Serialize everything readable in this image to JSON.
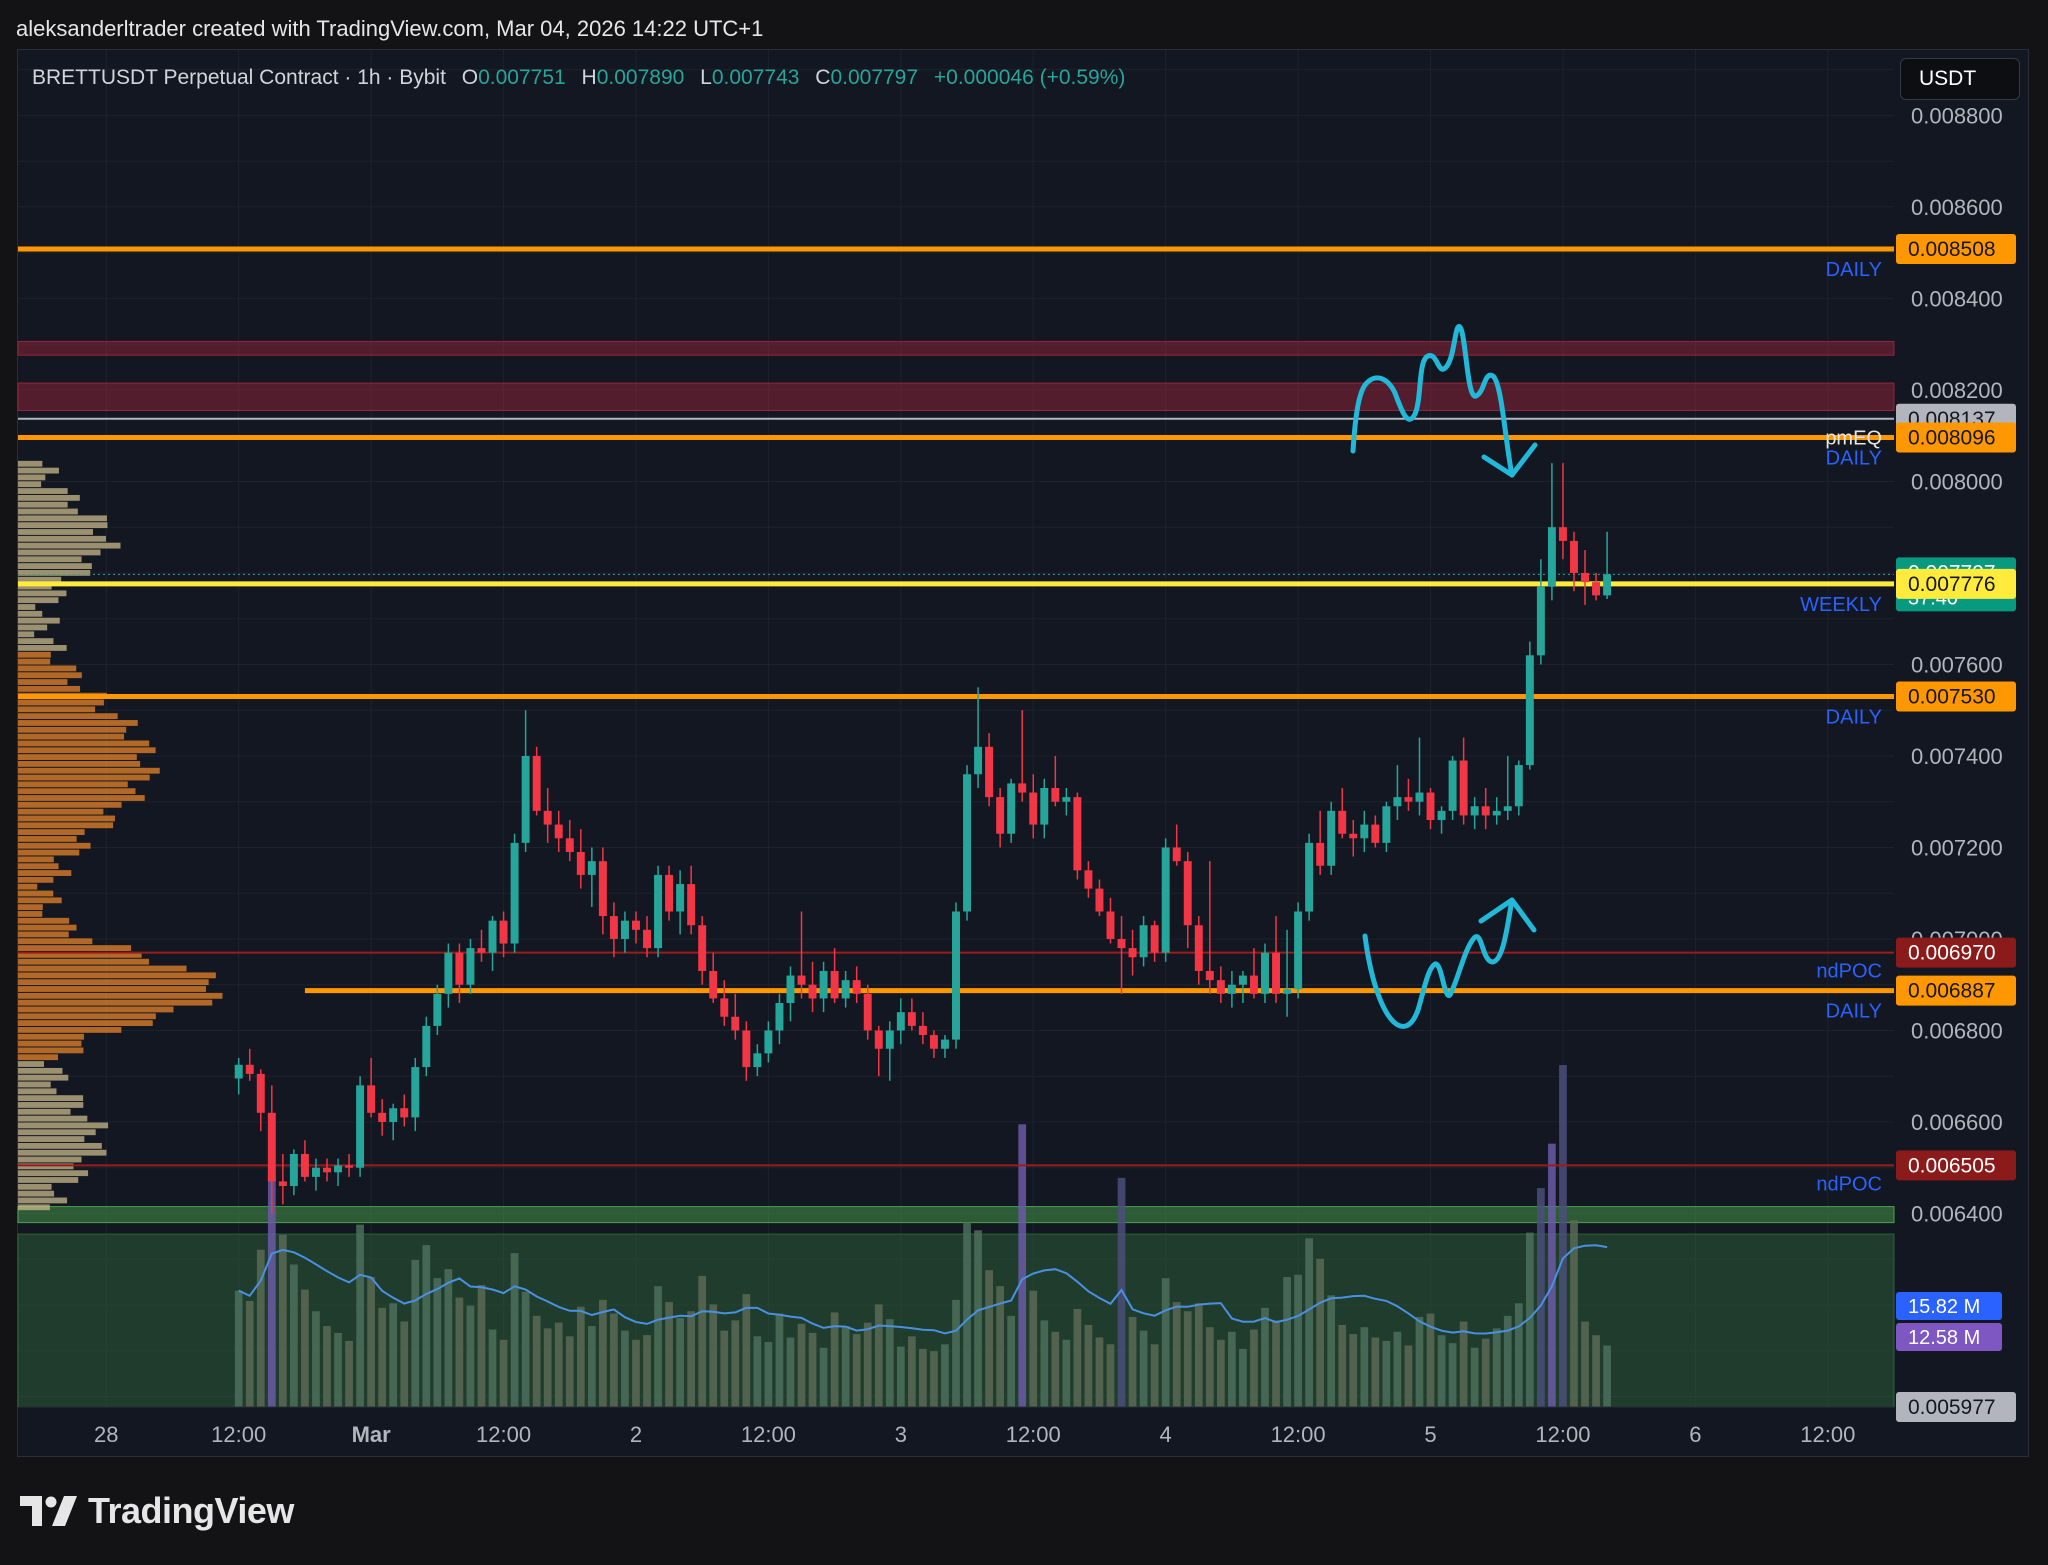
{
  "header": {
    "credit": "aleksanderltrader created with TradingView.com, Mar 04, 2026 14:22 UTC+1"
  },
  "legend": {
    "symbol": "BRETTUSDT Perpetual Contract · 1h · Bybit",
    "open_label": "O",
    "open": "0.007751",
    "high_label": "H",
    "high": "0.007890",
    "low_label": "L",
    "low": "0.007743",
    "close_label": "C",
    "close": "0.007797",
    "change": "+0.000046 (+0.59%)"
  },
  "currency_button": "USDT",
  "brand": {
    "name": "TradingView"
  },
  "colors": {
    "up": "#26a69a",
    "down": "#f23645",
    "orange": "#ff9800",
    "yellow": "#ffeb3b",
    "annotation": "#22b8d8"
  },
  "chart_data": {
    "type": "candlestick",
    "symbol": "BRETTUSDT",
    "interval": "1h",
    "exchange": "Bybit",
    "y_axis": {
      "range": [
        0.005977,
        0.008943
      ],
      "tick_labels": [
        "0.008800",
        "0.008600",
        "0.008400",
        "0.008200",
        "0.008000",
        "0.007600",
        "0.007400",
        "0.007200",
        "0.007000",
        "0.006800",
        "0.006600",
        "0.006400"
      ]
    },
    "x_axis": {
      "tick_labels": [
        "28",
        "12:00",
        "Mar",
        "12:00",
        "2",
        "12:00",
        "3",
        "12:00",
        "4",
        "12:00",
        "5",
        "12:00",
        "6",
        "12:00"
      ],
      "first_tick_hour": -12,
      "tick_step_hours": 12,
      "range_hours": [
        -20,
        150
      ]
    },
    "price_labels": [
      {
        "value": 0.008508,
        "text": "0.008508",
        "tag": "DAILY",
        "color": "#ff9800"
      },
      {
        "value": 0.008137,
        "text": "0.008137",
        "tag": "",
        "color": "#b2b5be"
      },
      {
        "value": 0.008096,
        "text": "0.008096",
        "tag": "pmEQ",
        "color": "#ff9800"
      },
      {
        "value": 0.007797,
        "text": "0.007797",
        "countdown": "37:40",
        "tag": "",
        "color": "#089981"
      },
      {
        "value": 0.007776,
        "text": "0.007776",
        "tag": "WEEKLY",
        "color": "#ffeb3b"
      },
      {
        "value": 0.00753,
        "text": "0.007530",
        "tag": "DAILY",
        "color": "#ff9800"
      },
      {
        "value": 0.00697,
        "text": "0.006970",
        "tag": "ndPOC",
        "color": "#9b1c1c"
      },
      {
        "value": 0.006887,
        "text": "0.006887",
        "tag": "DAILY",
        "color": "#ff9800"
      },
      {
        "value": 0.006505,
        "text": "0.006505",
        "tag": "ndPOC",
        "color": "#9b1c1c"
      },
      {
        "value": 0.005977,
        "text": "0.005977",
        "tag": "",
        "color": "#b2b5be"
      }
    ],
    "horizontal_levels": [
      {
        "value": 0.008508,
        "label": "DAILY",
        "color": "#ff9800"
      },
      {
        "value": 0.008096,
        "label": "DAILY",
        "color": "#ff9800"
      },
      {
        "value": 0.007776,
        "label": "WEEKLY",
        "color": "#ffeb3b"
      },
      {
        "value": 0.00753,
        "label": "DAILY",
        "color": "#ff9800"
      },
      {
        "value": 0.006887,
        "label": "DAILY",
        "color": "#ff9800"
      },
      {
        "value": 0.00697,
        "label": "ndPOC",
        "color": "#9b1c1c"
      },
      {
        "value": 0.006505,
        "label": "ndPOC",
        "color": "#9b1c1c"
      }
    ],
    "zones": [
      {
        "from": 0.008276,
        "to": 0.008306,
        "color": "#a1263c"
      },
      {
        "from": 0.008155,
        "to": 0.008215,
        "color": "#a1263c"
      },
      {
        "from": 0.00638,
        "to": 0.006415,
        "color": "#4caf50"
      },
      {
        "from": 0.005977,
        "to": 0.006355,
        "color": "#2e6b3a"
      }
    ],
    "volume_labels": [
      {
        "text": "15.82 M",
        "color": "#2962ff"
      },
      {
        "text": "12.58 M",
        "color": "#7e57c2"
      }
    ],
    "volume_y_max": 30,
    "series": [
      {
        "name": "BRETTUSDT",
        "ohlcv": [
          [
            0.006695,
            0.00674,
            0.00666,
            0.006725,
            10.2
          ],
          [
            0.006725,
            0.00676,
            0.00669,
            0.006705,
            9.3
          ],
          [
            0.006705,
            0.006715,
            0.00658,
            0.00662,
            13.8
          ],
          [
            0.00662,
            0.00668,
            0.0064,
            0.00647,
            20.5
          ],
          [
            0.00647,
            0.00653,
            0.00642,
            0.00646,
            15.1
          ],
          [
            0.00646,
            0.00654,
            0.00644,
            0.00653,
            12.5
          ],
          [
            0.00653,
            0.00656,
            0.00647,
            0.00648,
            10.3
          ],
          [
            0.00648,
            0.00652,
            0.00645,
            0.0065,
            8.4
          ],
          [
            0.0065,
            0.00652,
            0.00647,
            0.00649,
            7.1
          ],
          [
            0.00649,
            0.00652,
            0.00646,
            0.006505,
            6.5
          ],
          [
            0.006505,
            0.00653,
            0.00648,
            0.0065,
            5.8
          ],
          [
            0.0065,
            0.0067,
            0.00648,
            0.00668,
            16.0
          ],
          [
            0.00668,
            0.00674,
            0.00661,
            0.00662,
            11.4
          ],
          [
            0.00662,
            0.00665,
            0.00657,
            0.0066,
            8.7
          ],
          [
            0.0066,
            0.00664,
            0.00656,
            0.00663,
            9.1
          ],
          [
            0.00663,
            0.00666,
            0.00659,
            0.00661,
            7.5
          ],
          [
            0.00661,
            0.00674,
            0.00658,
            0.00672,
            12.9
          ],
          [
            0.00672,
            0.00683,
            0.0067,
            0.00681,
            14.2
          ],
          [
            0.00681,
            0.0069,
            0.00679,
            0.00688,
            11.3
          ],
          [
            0.00688,
            0.00699,
            0.00685,
            0.00697,
            12.1
          ],
          [
            0.00697,
            0.00699,
            0.00686,
            0.0069,
            9.6
          ],
          [
            0.0069,
            0.007,
            0.00688,
            0.00698,
            8.9
          ],
          [
            0.00698,
            0.00702,
            0.00695,
            0.00697,
            10.7
          ],
          [
            0.00697,
            0.00705,
            0.00693,
            0.00704,
            6.8
          ],
          [
            0.00704,
            0.00706,
            0.00696,
            0.00699,
            5.9
          ],
          [
            0.00699,
            0.00723,
            0.00697,
            0.00721,
            13.5
          ],
          [
            0.00721,
            0.0075,
            0.00719,
            0.0074,
            10.1
          ],
          [
            0.0074,
            0.00742,
            0.00727,
            0.00728,
            8.0
          ],
          [
            0.00728,
            0.00733,
            0.00721,
            0.00725,
            6.9
          ],
          [
            0.00725,
            0.00728,
            0.00719,
            0.00722,
            7.4
          ],
          [
            0.00722,
            0.00726,
            0.00717,
            0.00719,
            6.2
          ],
          [
            0.00719,
            0.00724,
            0.00711,
            0.00714,
            8.8
          ],
          [
            0.00714,
            0.0072,
            0.00707,
            0.00717,
            7.1
          ],
          [
            0.00717,
            0.0072,
            0.00701,
            0.00705,
            9.4
          ],
          [
            0.00705,
            0.00708,
            0.00696,
            0.007,
            8.2
          ],
          [
            0.007,
            0.00706,
            0.00697,
            0.00704,
            6.7
          ],
          [
            0.00704,
            0.00706,
            0.00699,
            0.00702,
            5.9
          ],
          [
            0.00702,
            0.00705,
            0.00696,
            0.00698,
            6.3
          ],
          [
            0.00698,
            0.00716,
            0.00696,
            0.00714,
            10.6
          ],
          [
            0.00714,
            0.00716,
            0.00704,
            0.00706,
            9.2
          ],
          [
            0.00706,
            0.00715,
            0.00701,
            0.00712,
            7.8
          ],
          [
            0.00712,
            0.00716,
            0.00701,
            0.00703,
            8.4
          ],
          [
            0.00703,
            0.00705,
            0.0069,
            0.00693,
            11.5
          ],
          [
            0.00693,
            0.00697,
            0.00686,
            0.00687,
            9.0
          ],
          [
            0.00687,
            0.00691,
            0.00681,
            0.00683,
            6.7
          ],
          [
            0.00683,
            0.00688,
            0.00678,
            0.0068,
            7.6
          ],
          [
            0.0068,
            0.00682,
            0.00669,
            0.00672,
            9.9
          ],
          [
            0.00672,
            0.00677,
            0.0067,
            0.00675,
            6.2
          ],
          [
            0.00675,
            0.00682,
            0.00673,
            0.0068,
            5.7
          ],
          [
            0.0068,
            0.00688,
            0.00677,
            0.00686,
            8.2
          ],
          [
            0.00686,
            0.00694,
            0.00682,
            0.00692,
            6.1
          ],
          [
            0.00692,
            0.00706,
            0.00687,
            0.0069,
            7.3
          ],
          [
            0.0069,
            0.00695,
            0.00684,
            0.00687,
            6.5
          ],
          [
            0.00687,
            0.00695,
            0.00684,
            0.00693,
            5.2
          ],
          [
            0.00693,
            0.00698,
            0.00686,
            0.00687,
            8.3
          ],
          [
            0.00687,
            0.00693,
            0.00685,
            0.00691,
            7.1
          ],
          [
            0.00691,
            0.00694,
            0.00686,
            0.00688,
            6.4
          ],
          [
            0.00688,
            0.0069,
            0.00678,
            0.0068,
            7.4
          ],
          [
            0.0068,
            0.00681,
            0.0067,
            0.00676,
            9.0
          ],
          [
            0.00676,
            0.00682,
            0.00669,
            0.0068,
            7.7
          ],
          [
            0.0068,
            0.00687,
            0.00677,
            0.00684,
            5.3
          ],
          [
            0.00684,
            0.00687,
            0.0068,
            0.00681,
            6.2
          ],
          [
            0.00681,
            0.00684,
            0.00677,
            0.00679,
            5.1
          ],
          [
            0.00679,
            0.0068,
            0.00674,
            0.00676,
            4.9
          ],
          [
            0.00676,
            0.00679,
            0.00674,
            0.00678,
            5.5
          ],
          [
            0.00678,
            0.00708,
            0.00676,
            0.00706,
            9.4
          ],
          [
            0.00706,
            0.00738,
            0.00704,
            0.00736,
            16.2
          ],
          [
            0.00736,
            0.00755,
            0.00733,
            0.00742,
            15.5
          ],
          [
            0.00742,
            0.00745,
            0.00729,
            0.00731,
            12.0
          ],
          [
            0.00731,
            0.00733,
            0.0072,
            0.00723,
            10.6
          ],
          [
            0.00723,
            0.00735,
            0.00721,
            0.00734,
            8.0
          ],
          [
            0.00734,
            0.0075,
            0.0073,
            0.00732,
            24.8
          ],
          [
            0.00732,
            0.00736,
            0.00722,
            0.00725,
            10.2
          ],
          [
            0.00725,
            0.00735,
            0.00722,
            0.00733,
            7.6
          ],
          [
            0.00733,
            0.0074,
            0.00729,
            0.0073,
            6.6
          ],
          [
            0.0073,
            0.00733,
            0.00727,
            0.00731,
            5.9
          ],
          [
            0.00731,
            0.00732,
            0.00713,
            0.00715,
            8.6
          ],
          [
            0.00715,
            0.00717,
            0.00709,
            0.00711,
            7.2
          ],
          [
            0.00711,
            0.00713,
            0.00705,
            0.00706,
            6.1
          ],
          [
            0.00706,
            0.00709,
            0.00699,
            0.007,
            5.5
          ],
          [
            0.007,
            0.00705,
            0.00688,
            0.00698,
            20.1
          ],
          [
            0.00698,
            0.00702,
            0.00692,
            0.00696,
            7.9
          ],
          [
            0.00696,
            0.00705,
            0.00694,
            0.00703,
            6.7
          ],
          [
            0.00703,
            0.00704,
            0.00695,
            0.00697,
            5.5
          ],
          [
            0.00697,
            0.00722,
            0.00695,
            0.0072,
            11.3
          ],
          [
            0.0072,
            0.00725,
            0.00716,
            0.00717,
            9.2
          ],
          [
            0.00717,
            0.00719,
            0.00698,
            0.00703,
            8.4
          ],
          [
            0.00703,
            0.00705,
            0.0069,
            0.00693,
            9.1
          ],
          [
            0.00693,
            0.00717,
            0.00688,
            0.00691,
            7.0
          ],
          [
            0.00691,
            0.00694,
            0.00686,
            0.00688,
            5.9
          ],
          [
            0.00688,
            0.00693,
            0.00685,
            0.0069,
            6.6
          ],
          [
            0.0069,
            0.00693,
            0.00686,
            0.00692,
            5.1
          ],
          [
            0.00692,
            0.00698,
            0.00687,
            0.00688,
            6.8
          ],
          [
            0.00688,
            0.00699,
            0.00686,
            0.00697,
            8.7
          ],
          [
            0.00697,
            0.00705,
            0.00686,
            0.00688,
            7.6
          ],
          [
            0.00688,
            0.00702,
            0.00683,
            0.00689,
            11.4
          ],
          [
            0.00689,
            0.00708,
            0.00687,
            0.00706,
            11.6
          ],
          [
            0.00706,
            0.00723,
            0.00704,
            0.00721,
            14.8
          ],
          [
            0.00721,
            0.00728,
            0.00714,
            0.00716,
            13.0
          ],
          [
            0.00716,
            0.0073,
            0.00714,
            0.00728,
            9.8
          ],
          [
            0.00728,
            0.00733,
            0.00722,
            0.00723,
            7.2
          ],
          [
            0.00723,
            0.00726,
            0.00718,
            0.00722,
            6.4
          ],
          [
            0.00722,
            0.00728,
            0.00719,
            0.00725,
            7.0
          ],
          [
            0.00725,
            0.00727,
            0.0072,
            0.00721,
            6.1
          ],
          [
            0.00721,
            0.0073,
            0.00719,
            0.00729,
            5.8
          ],
          [
            0.00729,
            0.00738,
            0.00726,
            0.00731,
            6.6
          ],
          [
            0.00731,
            0.00735,
            0.00728,
            0.0073,
            5.4
          ],
          [
            0.0073,
            0.00744,
            0.00727,
            0.00732,
            7.9
          ],
          [
            0.00732,
            0.00733,
            0.00724,
            0.00726,
            8.2
          ],
          [
            0.00726,
            0.00729,
            0.00723,
            0.00728,
            6.3
          ],
          [
            0.00728,
            0.0074,
            0.00726,
            0.00739,
            5.6
          ],
          [
            0.00739,
            0.00744,
            0.00725,
            0.00727,
            7.5
          ],
          [
            0.00727,
            0.00731,
            0.00724,
            0.00729,
            5.2
          ],
          [
            0.00729,
            0.00733,
            0.00724,
            0.00727,
            6.0
          ],
          [
            0.00727,
            0.00731,
            0.00725,
            0.00728,
            6.9
          ],
          [
            0.00728,
            0.0074,
            0.00726,
            0.00729,
            8.0
          ],
          [
            0.00729,
            0.00739,
            0.00727,
            0.00738,
            9.1
          ],
          [
            0.00738,
            0.00765,
            0.00737,
            0.00762,
            15.3
          ],
          [
            0.00762,
            0.00783,
            0.0076,
            0.00777,
            19.2
          ],
          [
            0.00777,
            0.00804,
            0.00774,
            0.0079,
            23.1
          ],
          [
            0.0079,
            0.00804,
            0.00783,
            0.00787,
            30.0
          ],
          [
            0.00787,
            0.00789,
            0.00776,
            0.0078,
            16.4
          ],
          [
            0.0078,
            0.00785,
            0.00773,
            0.00778,
            7.5
          ],
          [
            0.00778,
            0.0078,
            0.00774,
            0.007751,
            6.3
          ],
          [
            0.007751,
            0.00789,
            0.007743,
            0.007797,
            5.4
          ]
        ]
      }
    ]
  }
}
